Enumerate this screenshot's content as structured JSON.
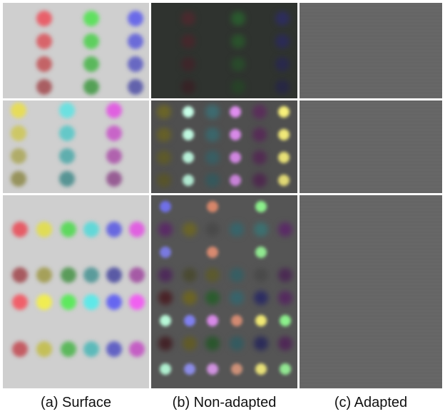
{
  "captions": {
    "surface": "(a) Surface",
    "non_adapted": "(b) Non-adapted",
    "adapted": "(c) Adapted"
  },
  "colors": {
    "surface_background": "#cfcfcf",
    "non_adapted_row1_background": "#2f332f",
    "non_adapted_row2_background": "#4f4f4f",
    "non_adapted_row3_background": "#555555",
    "adapted_background": "#666666",
    "divider": "#ffffff"
  }
}
